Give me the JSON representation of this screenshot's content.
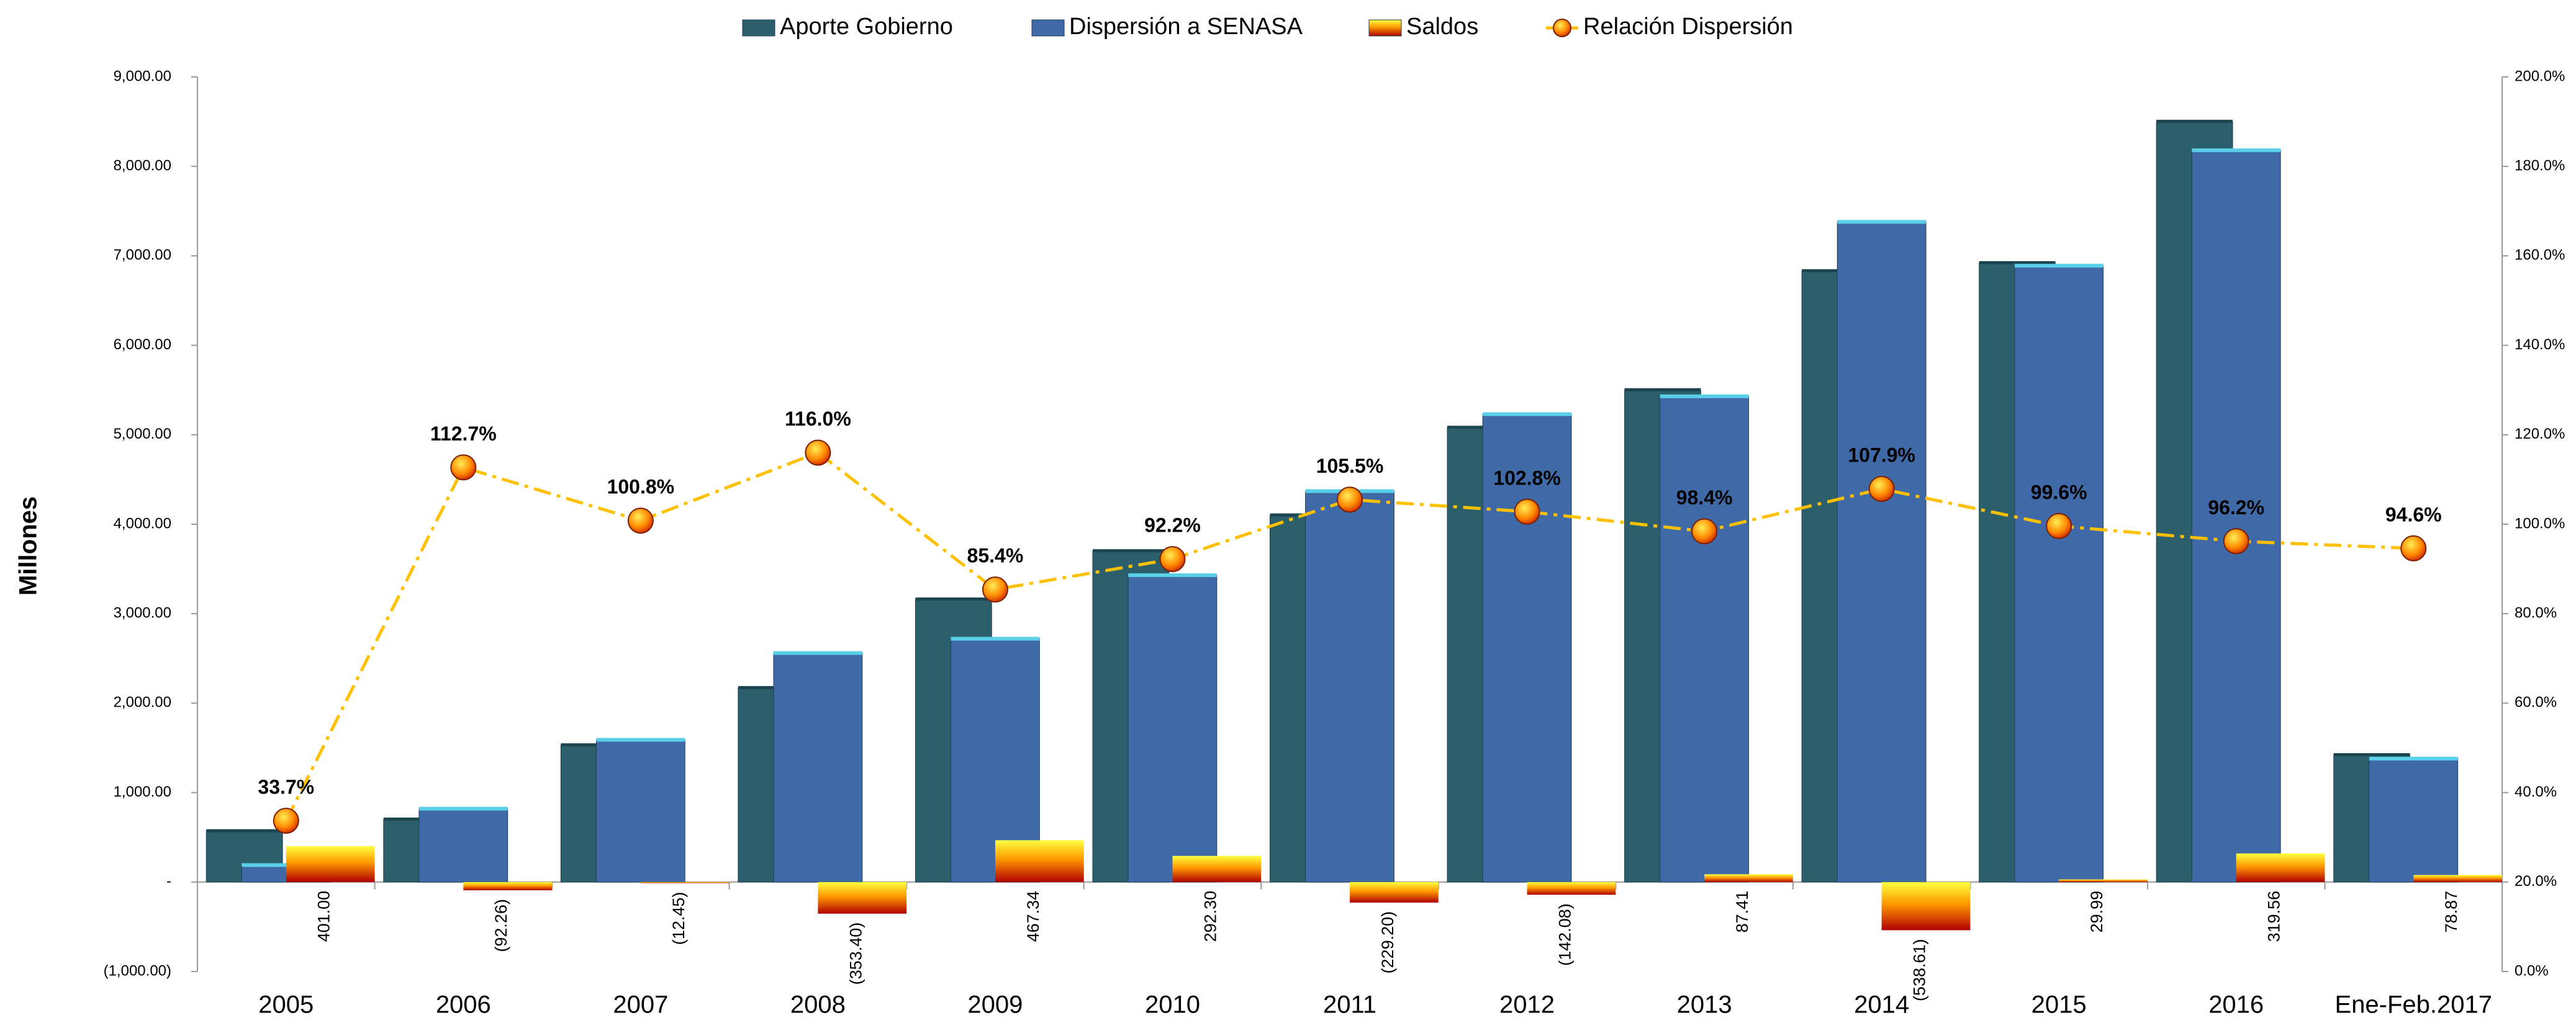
{
  "chart_data": {
    "type": "bar_line",
    "y_label": "Millones",
    "categories": [
      "2005",
      "2006",
      "2007",
      "2008",
      "2009",
      "2010",
      "2011",
      "2012",
      "2013",
      "2014",
      "2015",
      "2016",
      "Ene-Feb.2017"
    ],
    "ylim": [
      -1000,
      9000
    ],
    "yticks": [
      {
        "value": -1000,
        "label": "(1,000.00)"
      },
      {
        "value": 0,
        "label": "-"
      },
      {
        "value": 1000,
        "label": "1,000.00"
      },
      {
        "value": 2000,
        "label": "2,000.00"
      },
      {
        "value": 3000,
        "label": "3,000.00"
      },
      {
        "value": 4000,
        "label": "4,000.00"
      },
      {
        "value": 5000,
        "label": "5,000.00"
      },
      {
        "value": 6000,
        "label": "6,000.00"
      },
      {
        "value": 7000,
        "label": "7,000.00"
      },
      {
        "value": 8000,
        "label": "8,000.00"
      },
      {
        "value": 9000,
        "label": "9,000.00"
      }
    ],
    "y2lim": [
      0,
      200
    ],
    "y2ticks": [
      {
        "value": 0,
        "label": "0.0%"
      },
      {
        "value": 20,
        "label": "20.0%"
      },
      {
        "value": 40,
        "label": "40.0%"
      },
      {
        "value": 60,
        "label": "60.0%"
      },
      {
        "value": 80,
        "label": "80.0%"
      },
      {
        "value": 100,
        "label": "100.0%"
      },
      {
        "value": 120,
        "label": "120.0%"
      },
      {
        "value": 140,
        "label": "140.0%"
      },
      {
        "value": 160,
        "label": "160.0%"
      },
      {
        "value": 180,
        "label": "180.0%"
      },
      {
        "value": 200,
        "label": "200.0%"
      }
    ],
    "series": [
      {
        "name": "Aporte Gobierno",
        "color": "#2b5f6c",
        "kind": "bar",
        "values": [
          570,
          700,
          1530,
          2170,
          3160,
          3700,
          4100,
          5080,
          5500,
          6830,
          6920,
          8500,
          1420
        ]
      },
      {
        "name": "Dispersión a SENASA",
        "color": "#3f69a7",
        "kind": "bar",
        "values": [
          190,
          820,
          1590,
          2560,
          2720,
          3430,
          4370,
          5230,
          5430,
          7380,
          6890,
          8180,
          1380
        ]
      },
      {
        "name": "Saldos",
        "color": "#ff9a00",
        "kind": "bar",
        "values": [
          401.0,
          -92.26,
          -12.45,
          -353.4,
          467.34,
          292.3,
          -229.2,
          -142.08,
          87.41,
          -538.61,
          29.99,
          319.56,
          78.87
        ],
        "value_labels": [
          "401.00",
          "(92.26)",
          "(12.45)",
          "(353.40)",
          "467.34",
          "292.30",
          "(229.20)",
          "(142.08)",
          "87.41",
          "(538.61)",
          "29.99",
          "319.56",
          "78.87"
        ]
      },
      {
        "name": "Relación Dispersión",
        "color": "#ffc000",
        "kind": "line",
        "axis": "y2",
        "values": [
          33.7,
          112.7,
          100.8,
          116.0,
          85.4,
          92.2,
          105.5,
          102.8,
          98.4,
          107.9,
          99.6,
          96.2,
          94.6
        ],
        "value_labels": [
          "33.7%",
          "112.7%",
          "100.8%",
          "116.0%",
          "85.4%",
          "92.2%",
          "105.5%",
          "102.8%",
          "98.4%",
          "107.9%",
          "99.6%",
          "96.2%",
          "94.6%"
        ]
      }
    ],
    "legend": "top"
  }
}
